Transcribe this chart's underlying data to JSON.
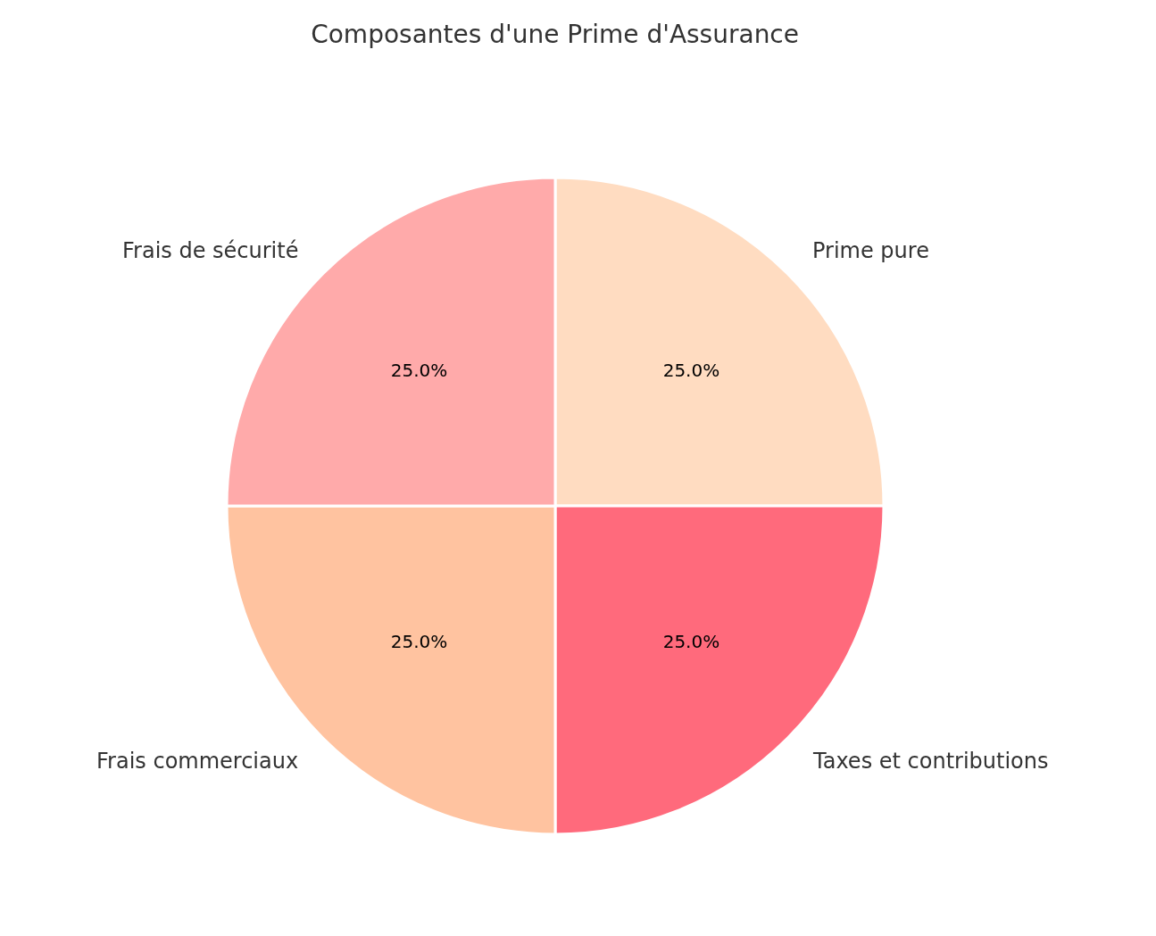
{
  "chart_data": {
    "type": "pie",
    "title": "Composantes d'une Prime d'Assurance",
    "categories": [
      "Prime pure",
      "Taxes et contributions",
      "Frais commerciaux",
      "Frais de sécurité"
    ],
    "values": [
      25,
      25,
      25,
      25
    ],
    "value_labels": [
      "25.0%",
      "25.0%",
      "25.0%",
      "25.0%"
    ],
    "colors": [
      "#ffdcc1",
      "#ff6a7c",
      "#ffc3a0",
      "#ffaaaa"
    ],
    "legend": false
  }
}
